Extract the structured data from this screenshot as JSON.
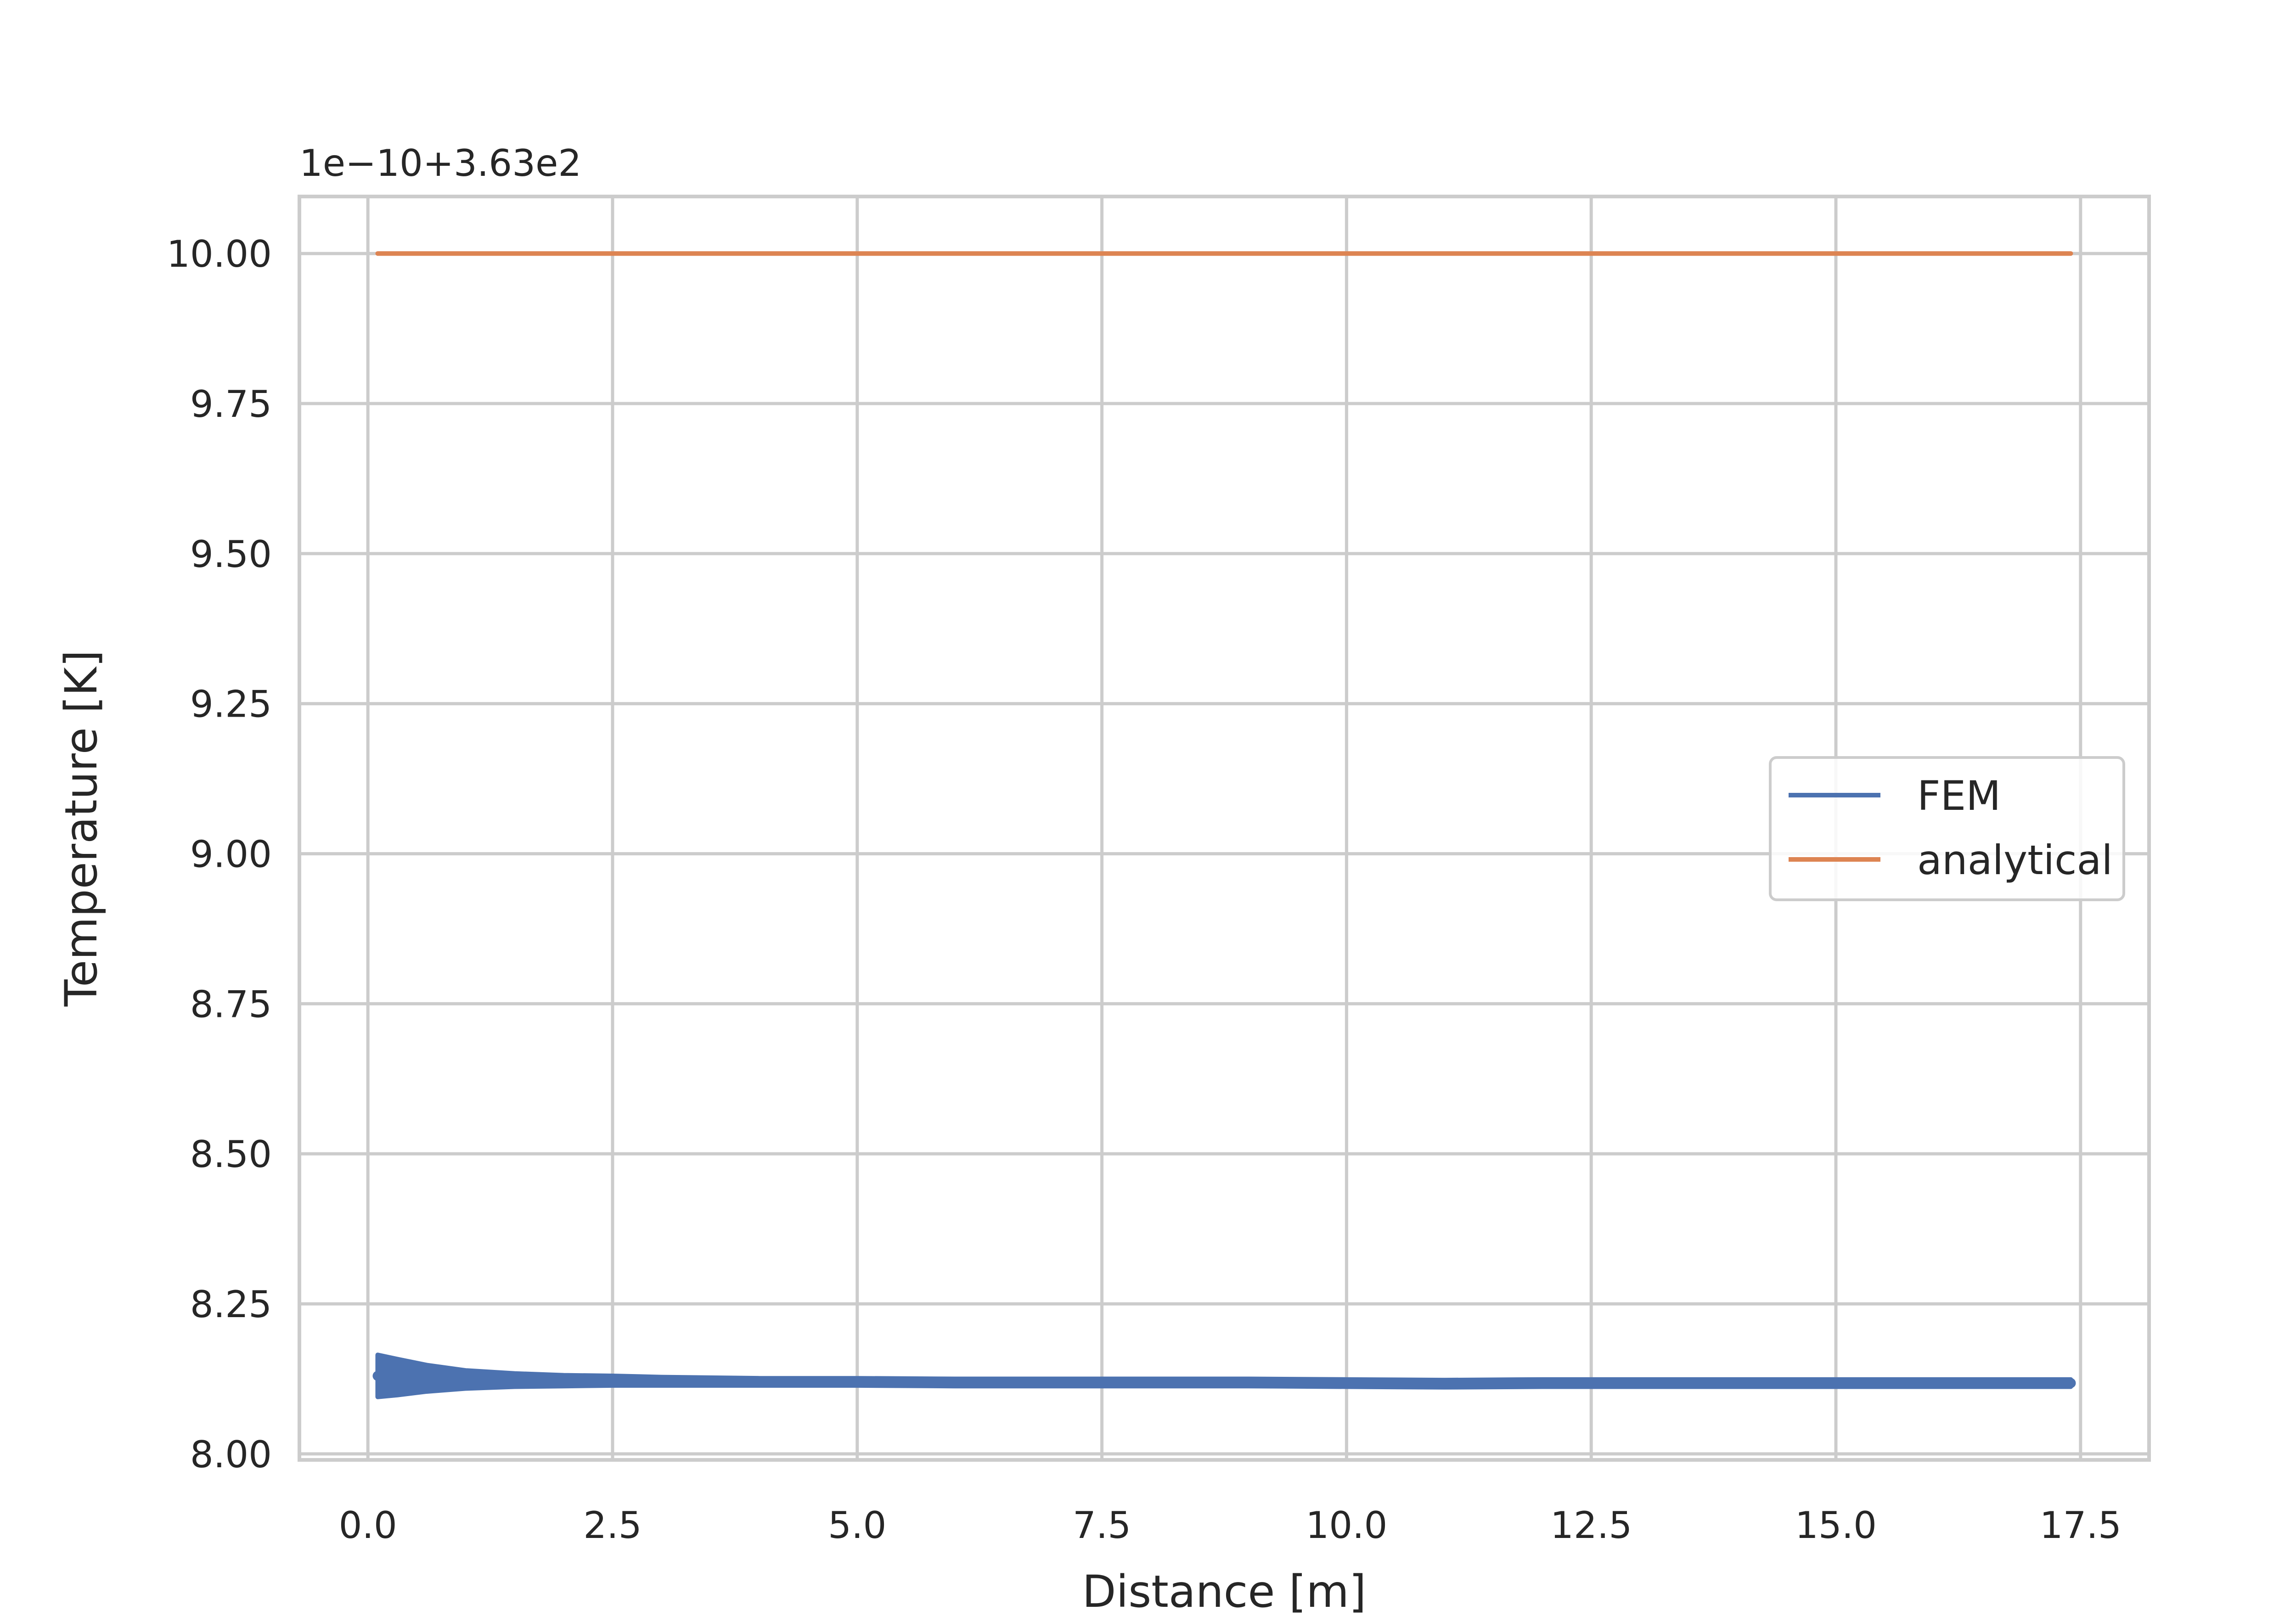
{
  "chart_data": {
    "type": "line",
    "title": "",
    "xlabel": "Distance [m]",
    "ylabel": "Temperature [K]",
    "y_offset_label": "1e−10+3.63e2",
    "xlim": [
      -0.7,
      18.2
    ],
    "ylim": [
      7.99,
      10.095
    ],
    "x_ticks": [
      0.0,
      2.5,
      5.0,
      7.5,
      10.0,
      12.5,
      15.0,
      17.5
    ],
    "x_tick_labels": [
      "0.0",
      "2.5",
      "5.0",
      "7.5",
      "10.0",
      "12.5",
      "15.0",
      "17.5"
    ],
    "y_ticks": [
      8.0,
      8.25,
      8.5,
      8.75,
      9.0,
      9.25,
      9.5,
      9.75,
      10.0
    ],
    "y_tick_labels": [
      "8.00",
      "8.25",
      "8.50",
      "8.75",
      "9.00",
      "9.25",
      "9.50",
      "9.75",
      "10.00"
    ],
    "grid": true,
    "legend_position": "center-right",
    "background": "#ffffff",
    "grid_color": "#cccccc",
    "series": [
      {
        "name": "FEM",
        "color": "#4c72b0",
        "x": [
          0.1,
          0.3,
          0.6,
          1.0,
          1.5,
          2.0,
          2.5,
          3.0,
          4.0,
          5.0,
          6.0,
          7.5,
          9.0,
          10.0,
          11.0,
          12.0,
          13.0,
          14.0,
          15.0,
          16.0,
          17.4
        ],
        "y": [
          8.13,
          8.128,
          8.126,
          8.124,
          8.123,
          8.122,
          8.122,
          8.121,
          8.12,
          8.12,
          8.119,
          8.119,
          8.119,
          8.118,
          8.117,
          8.118,
          8.118,
          8.118,
          8.118,
          8.118,
          8.118
        ],
        "band_half_width": [
          0.035,
          0.03,
          0.022,
          0.015,
          0.011,
          0.009,
          0.008,
          0.007,
          0.006,
          0.006,
          0.006,
          0.006,
          0.006,
          0.006,
          0.006,
          0.006,
          0.006,
          0.006,
          0.006,
          0.006,
          0.006
        ]
      },
      {
        "name": "analytical",
        "color": "#dd8452",
        "x": [
          0.1,
          17.4
        ],
        "y": [
          10.0,
          10.0
        ]
      }
    ]
  }
}
